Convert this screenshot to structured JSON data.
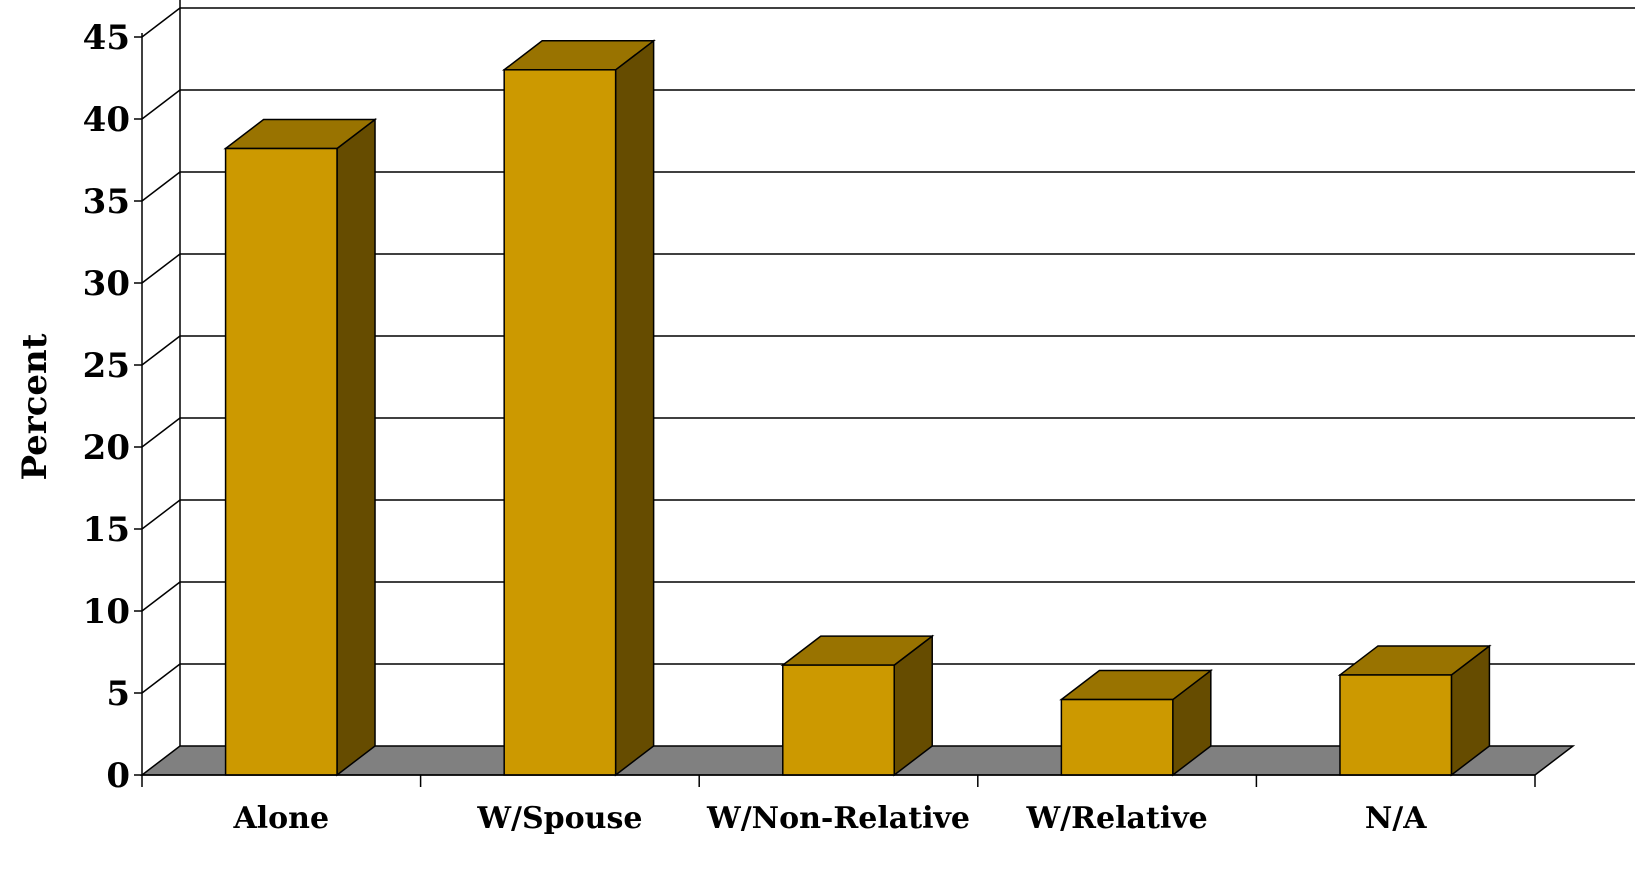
{
  "chart_data": {
    "type": "bar",
    "title": "",
    "xlabel": "",
    "ylabel": "Percent",
    "ylim": [
      0,
      45
    ],
    "yticks": [
      0,
      5,
      10,
      15,
      20,
      25,
      30,
      35,
      40,
      45
    ],
    "categories": [
      "Alone",
      "W/Spouse",
      "W/Non-Relative",
      "W/Relative",
      "N/A"
    ],
    "values": [
      38.2,
      43.0,
      6.7,
      4.6,
      6.1
    ],
    "grid": true,
    "legend": "none",
    "style": "3d",
    "colors": {
      "bar_front": "#CC9900",
      "bar_top": "#997300",
      "bar_side": "#664C00",
      "floor": "#808080",
      "outline": "#000000"
    }
  }
}
